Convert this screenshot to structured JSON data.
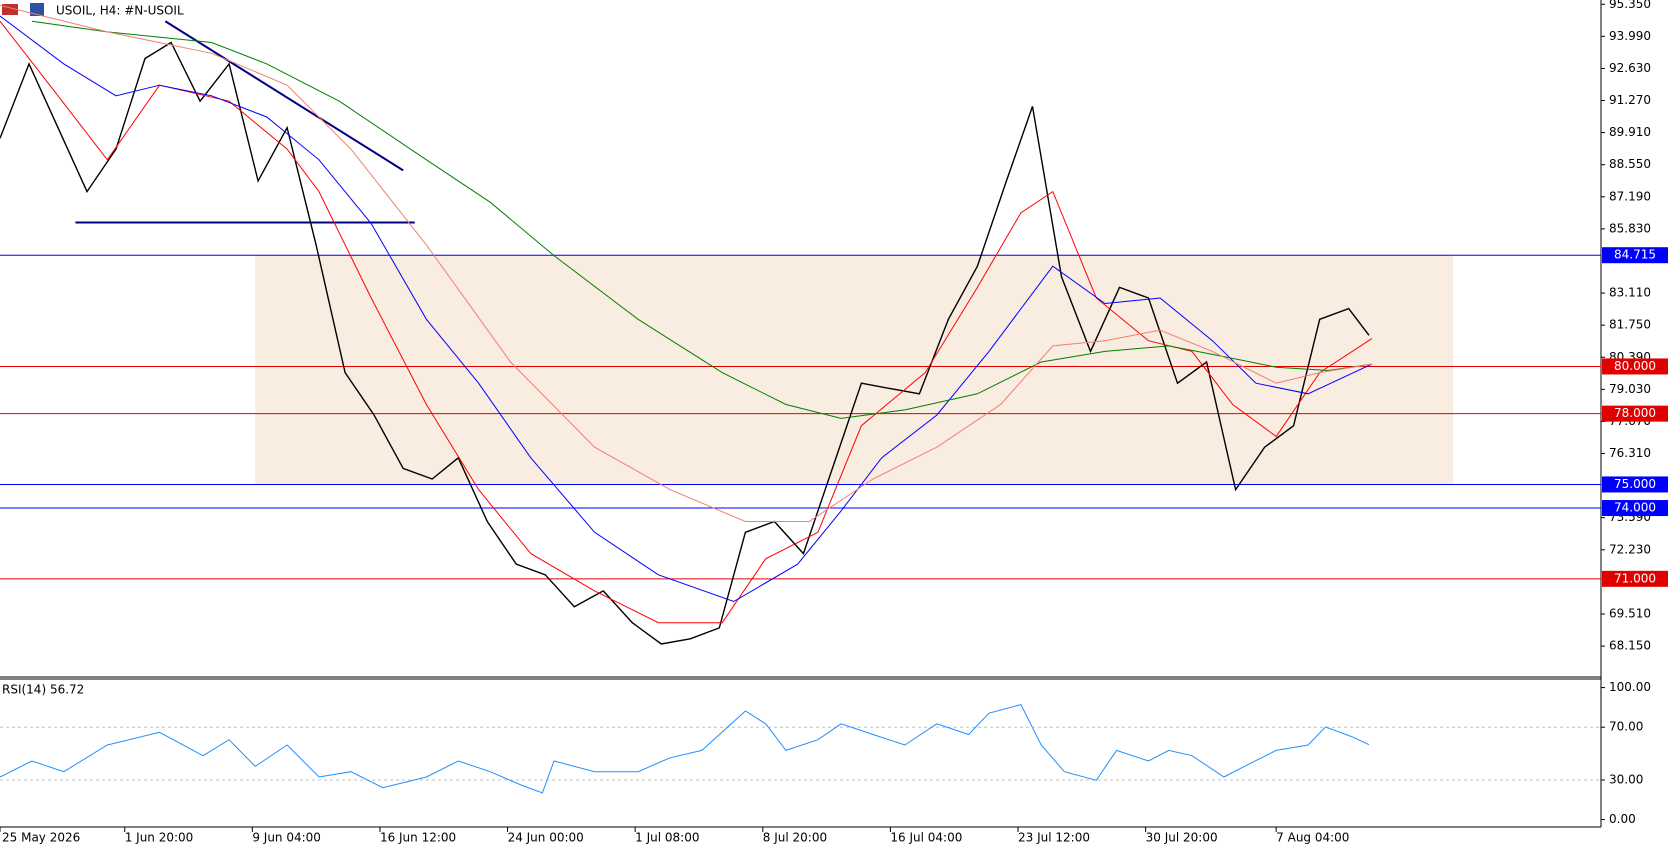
{
  "chart_data": [
    {
      "type": "line",
      "title": "USOIL, H4:  #N-USOIL",
      "xlim": [
        0,
        552
      ],
      "xticks": [
        {
          "value": 0,
          "label": "25 May 2026"
        },
        {
          "value": 43,
          "label": "1 Jun 20:00"
        },
        {
          "value": 87,
          "label": "9 Jun 04:00"
        },
        {
          "value": 131,
          "label": "16 Jun 12:00"
        },
        {
          "value": 175,
          "label": "24 Jun 00:00"
        },
        {
          "value": 219,
          "label": "1 Jul 08:00"
        },
        {
          "value": 263,
          "label": "8 Jul 20:00"
        },
        {
          "value": 307,
          "label": "16 Jul 04:00"
        },
        {
          "value": 351,
          "label": "23 Jul 12:00"
        },
        {
          "value": 395,
          "label": "30 Jul 20:00"
        },
        {
          "value": 440,
          "label": "7 Aug 04:00"
        }
      ],
      "ylim": [
        66.84,
        95.53
      ],
      "yticks": [
        {
          "value": 95.35,
          "label": "95.350"
        },
        {
          "value": 93.99,
          "label": "93.990"
        },
        {
          "value": 92.63,
          "label": "92.630"
        },
        {
          "value": 91.27,
          "label": "91.270"
        },
        {
          "value": 89.91,
          "label": "89.910"
        },
        {
          "value": 88.55,
          "label": "88.550"
        },
        {
          "value": 87.19,
          "label": "87.190"
        },
        {
          "value": 85.83,
          "label": "85.830"
        },
        {
          "value": 83.11,
          "label": "83.110"
        },
        {
          "value": 81.75,
          "label": "81.750"
        },
        {
          "value": 80.39,
          "label": "80.390"
        },
        {
          "value": 79.03,
          "label": "79.030"
        },
        {
          "value": 77.67,
          "label": "77.670"
        },
        {
          "value": 76.31,
          "label": "76.310"
        },
        {
          "value": 73.59,
          "label": "73.590"
        },
        {
          "value": 72.23,
          "label": "72.230"
        },
        {
          "value": 69.51,
          "label": "69.510"
        },
        {
          "value": 68.15,
          "label": "68.150"
        }
      ],
      "zone": {
        "x": [
          88,
          501
        ],
        "y": [
          75,
          84.715
        ],
        "color": "#f9ece1"
      },
      "levels": [
        {
          "value": 84.715,
          "label": "84.715",
          "color": "#0000ff"
        },
        {
          "value": 80,
          "label": "80.000",
          "color": "#e00000"
        },
        {
          "value": 78,
          "label": "78.000",
          "color": "#e00000"
        },
        {
          "value": 75,
          "label": "75.000",
          "color": "#0000ff"
        },
        {
          "value": 74,
          "label": "74.000",
          "color": "#0000ff"
        },
        {
          "value": 71,
          "label": "71.000",
          "color": "#e00000"
        }
      ],
      "trendlines": [
        {
          "x": [
            57,
            139
          ],
          "y": [
            94.63,
            88.31
          ],
          "color": "#000080"
        },
        {
          "x": [
            26,
            143
          ],
          "y": [
            86.1,
            86.1
          ],
          "color": "#000080"
        }
      ],
      "series": [
        {
          "color": "#000000",
          "width": 1.4,
          "x": [
            0,
            10,
            20,
            30,
            40,
            50,
            59,
            69,
            79,
            89,
            99,
            109,
            119,
            129,
            139,
            149,
            158,
            168,
            178,
            188,
            198,
            208,
            218,
            228,
            238,
            248,
            257,
            267,
            277,
            287,
            297,
            307,
            317,
            327,
            337,
            347,
            356,
            366,
            376,
            386,
            396,
            406,
            416,
            426,
            436,
            446,
            455,
            465,
            472
          ],
          "values": [
            89.67,
            92.82,
            90.12,
            87.41,
            89.21,
            93.05,
            93.73,
            91.24,
            92.82,
            87.86,
            90.12,
            85.15,
            79.74,
            77.94,
            75.68,
            75.23,
            76.13,
            73.43,
            71.62,
            71.17,
            69.82,
            70.49,
            69.14,
            68.24,
            68.46,
            68.92,
            72.97,
            73.43,
            72.07,
            75.68,
            79.29,
            79.06,
            78.84,
            82.0,
            84.25,
            87.86,
            91.02,
            83.8,
            80.64,
            83.35,
            82.9,
            79.29,
            80.19,
            74.78,
            76.58,
            77.49,
            82.0,
            82.45,
            81.32
          ]
        },
        {
          "color": "#ff0000",
          "width": 1,
          "x": [
            0,
            20,
            37,
            55,
            79,
            99,
            110,
            128,
            147,
            165,
            183,
            205,
            227,
            249,
            264,
            282,
            297,
            319,
            337,
            352,
            363,
            378,
            396,
            411,
            425,
            440,
            455,
            473
          ],
          "values": [
            94.63,
            91.47,
            88.76,
            91.92,
            91.24,
            89.21,
            87.41,
            82.9,
            78.39,
            74.78,
            72.07,
            70.49,
            69.14,
            69.14,
            71.85,
            72.97,
            77.49,
            79.74,
            83.35,
            86.51,
            87.41,
            82.9,
            81.09,
            80.64,
            78.39,
            77.03,
            79.74,
            81.18
          ]
        },
        {
          "color": "#0000ff",
          "width": 1,
          "x": [
            0,
            22,
            40,
            55,
            73,
            92,
            110,
            128,
            147,
            165,
            183,
            205,
            227,
            253,
            275,
            290,
            304,
            323,
            341,
            363,
            381,
            400,
            418,
            433,
            451,
            473
          ],
          "values": [
            94.85,
            92.82,
            91.47,
            91.92,
            91.47,
            90.57,
            88.76,
            86.06,
            82.0,
            79.29,
            76.13,
            72.97,
            71.17,
            70.04,
            71.62,
            73.88,
            76.13,
            77.94,
            80.64,
            84.25,
            82.67,
            82.9,
            81.09,
            79.29,
            78.84,
            80.1
          ]
        },
        {
          "color": "#008000",
          "width": 1,
          "x": [
            11,
            37,
            73,
            92,
            117,
            147,
            169,
            191,
            220,
            249,
            271,
            290,
            312,
            337,
            359,
            381,
            403,
            422,
            440,
            458,
            473
          ],
          "values": [
            94.63,
            94.18,
            93.73,
            92.82,
            91.24,
            88.76,
            86.96,
            84.7,
            82.0,
            79.74,
            78.39,
            77.8,
            78.16,
            78.84,
            80.19,
            80.64,
            80.87,
            80.42,
            79.97,
            79.83,
            80.1
          ]
        },
        {
          "color": "#f08070",
          "width": 1,
          "x": [
            0,
            37,
            73,
            99,
            121,
            147,
            176,
            205,
            231,
            257,
            279,
            301,
            323,
            345,
            363,
            381,
            400,
            418,
            440,
            455,
            473
          ],
          "values": [
            95.3,
            94.18,
            93.27,
            91.92,
            89.21,
            85.15,
            80.19,
            76.58,
            74.78,
            73.43,
            73.43,
            75.23,
            76.58,
            78.39,
            80.87,
            81.09,
            81.54,
            80.64,
            79.29,
            79.74,
            80.1
          ]
        }
      ]
    },
    {
      "type": "line",
      "title": "RSI(14) 56.72",
      "ylim": [
        -5.6,
        106.5
      ],
      "yticks": [
        {
          "value": 100,
          "label": "100.00"
        },
        {
          "value": 70,
          "label": "70.00"
        },
        {
          "value": 30,
          "label": "30.00"
        },
        {
          "value": 0,
          "label": "0.00"
        }
      ],
      "levels": [
        70,
        30
      ],
      "series": [
        {
          "color": "#1e90ff",
          "width": 1,
          "x": [
            0,
            11,
            22,
            37,
            55,
            70,
            79,
            88,
            99,
            110,
            121,
            132,
            147,
            158,
            169,
            180,
            187,
            191,
            205,
            220,
            231,
            242,
            257,
            264,
            271,
            282,
            290,
            301,
            312,
            323,
            334,
            341,
            352,
            359,
            367,
            378,
            385,
            396,
            403,
            411,
            422,
            429,
            440,
            451,
            457,
            466,
            472
          ],
          "values": [
            32.3,
            44.4,
            36.3,
            56.5,
            66.1,
            48.4,
            60.5,
            40.3,
            56.5,
            32.3,
            36.3,
            24.2,
            32.3,
            44.4,
            36.3,
            25.8,
            20.2,
            44.4,
            36.3,
            36.3,
            46.8,
            52.4,
            82.3,
            72.6,
            52.4,
            60.5,
            72.6,
            64.5,
            56.5,
            72.6,
            64.5,
            80.6,
            87.1,
            56.5,
            36.3,
            29.8,
            52.4,
            44.4,
            52.4,
            48.4,
            32.3,
            40.3,
            52.4,
            56.5,
            70.2,
            62.9,
            56.7
          ]
        }
      ]
    }
  ]
}
